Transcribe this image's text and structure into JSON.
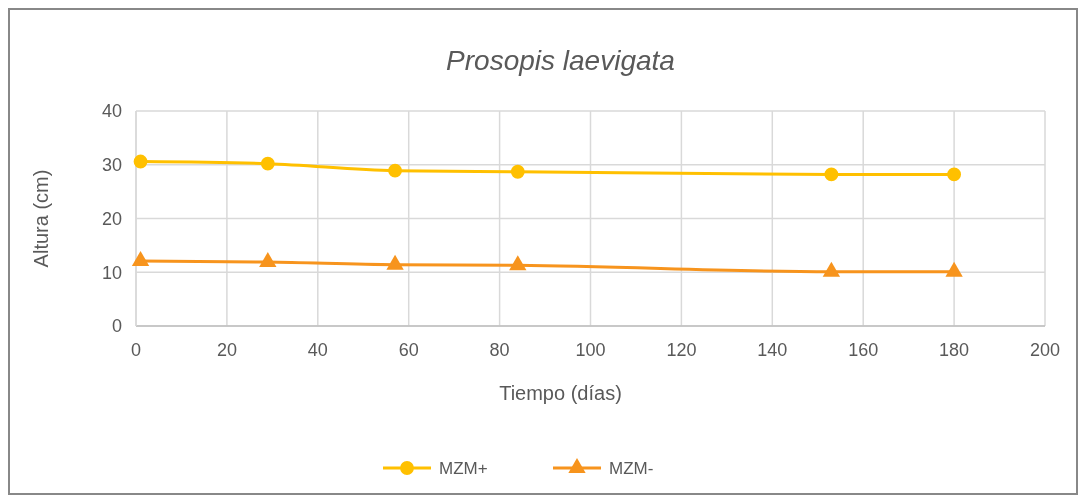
{
  "chart_data": {
    "type": "line",
    "title": "Prosopis laevigata",
    "xlabel": "Tiempo (días)",
    "ylabel": "Altura (cm)",
    "x": [
      1,
      29,
      57,
      84,
      153,
      180
    ],
    "series": [
      {
        "name": "MZM+",
        "color": "#ffc000",
        "marker": "circle",
        "values": [
          30.6,
          30.2,
          28.9,
          28.7,
          28.2,
          28.2
        ]
      },
      {
        "name": "MZM-",
        "color": "#f7941d",
        "marker": "triangle",
        "values": [
          12.1,
          11.9,
          11.4,
          11.3,
          10.1,
          10.1
        ]
      }
    ],
    "xlim": [
      0,
      200
    ],
    "xticks": [
      0,
      20,
      40,
      60,
      80,
      100,
      120,
      140,
      160,
      180,
      200
    ],
    "ylim": [
      0,
      40
    ],
    "yticks": [
      0,
      10,
      20,
      30,
      40
    ],
    "grid": true,
    "legend": "bottom",
    "line_style": "solid"
  }
}
